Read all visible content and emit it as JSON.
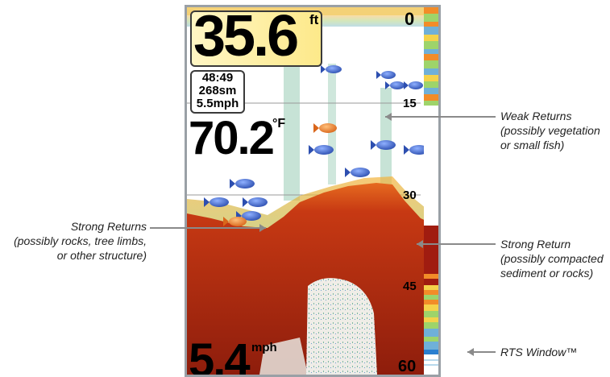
{
  "sonar": {
    "depth_value": "35.6",
    "depth_unit": "ft",
    "info_lines": [
      "48:49",
      "268sm",
      "5.5mph"
    ],
    "temp_value": "70.2",
    "temp_unit": "°F",
    "speed_value": "5.4",
    "speed_unit": "mph",
    "scale": [
      "0",
      "15",
      "30",
      "45",
      "60"
    ]
  },
  "annotations": {
    "weak": [
      "Weak Returns",
      "(possibly vegetation",
      "or small fish)"
    ],
    "strong_left": [
      "Strong Returns",
      "(possibly rocks, tree limbs,",
      "or other structure)"
    ],
    "strong_right": [
      "Strong Return",
      "(possibly compacted",
      "sediment or rocks)"
    ],
    "rts": [
      "RTS Window™"
    ]
  },
  "colors": {
    "bottom_dark": "#b5280e",
    "bottom_mid": "#e0541b",
    "weak_return": "#3aa87a",
    "fish_blue": "#3f64c8",
    "fish_orange": "#e58b2a",
    "leader": "#8a8a8a"
  }
}
